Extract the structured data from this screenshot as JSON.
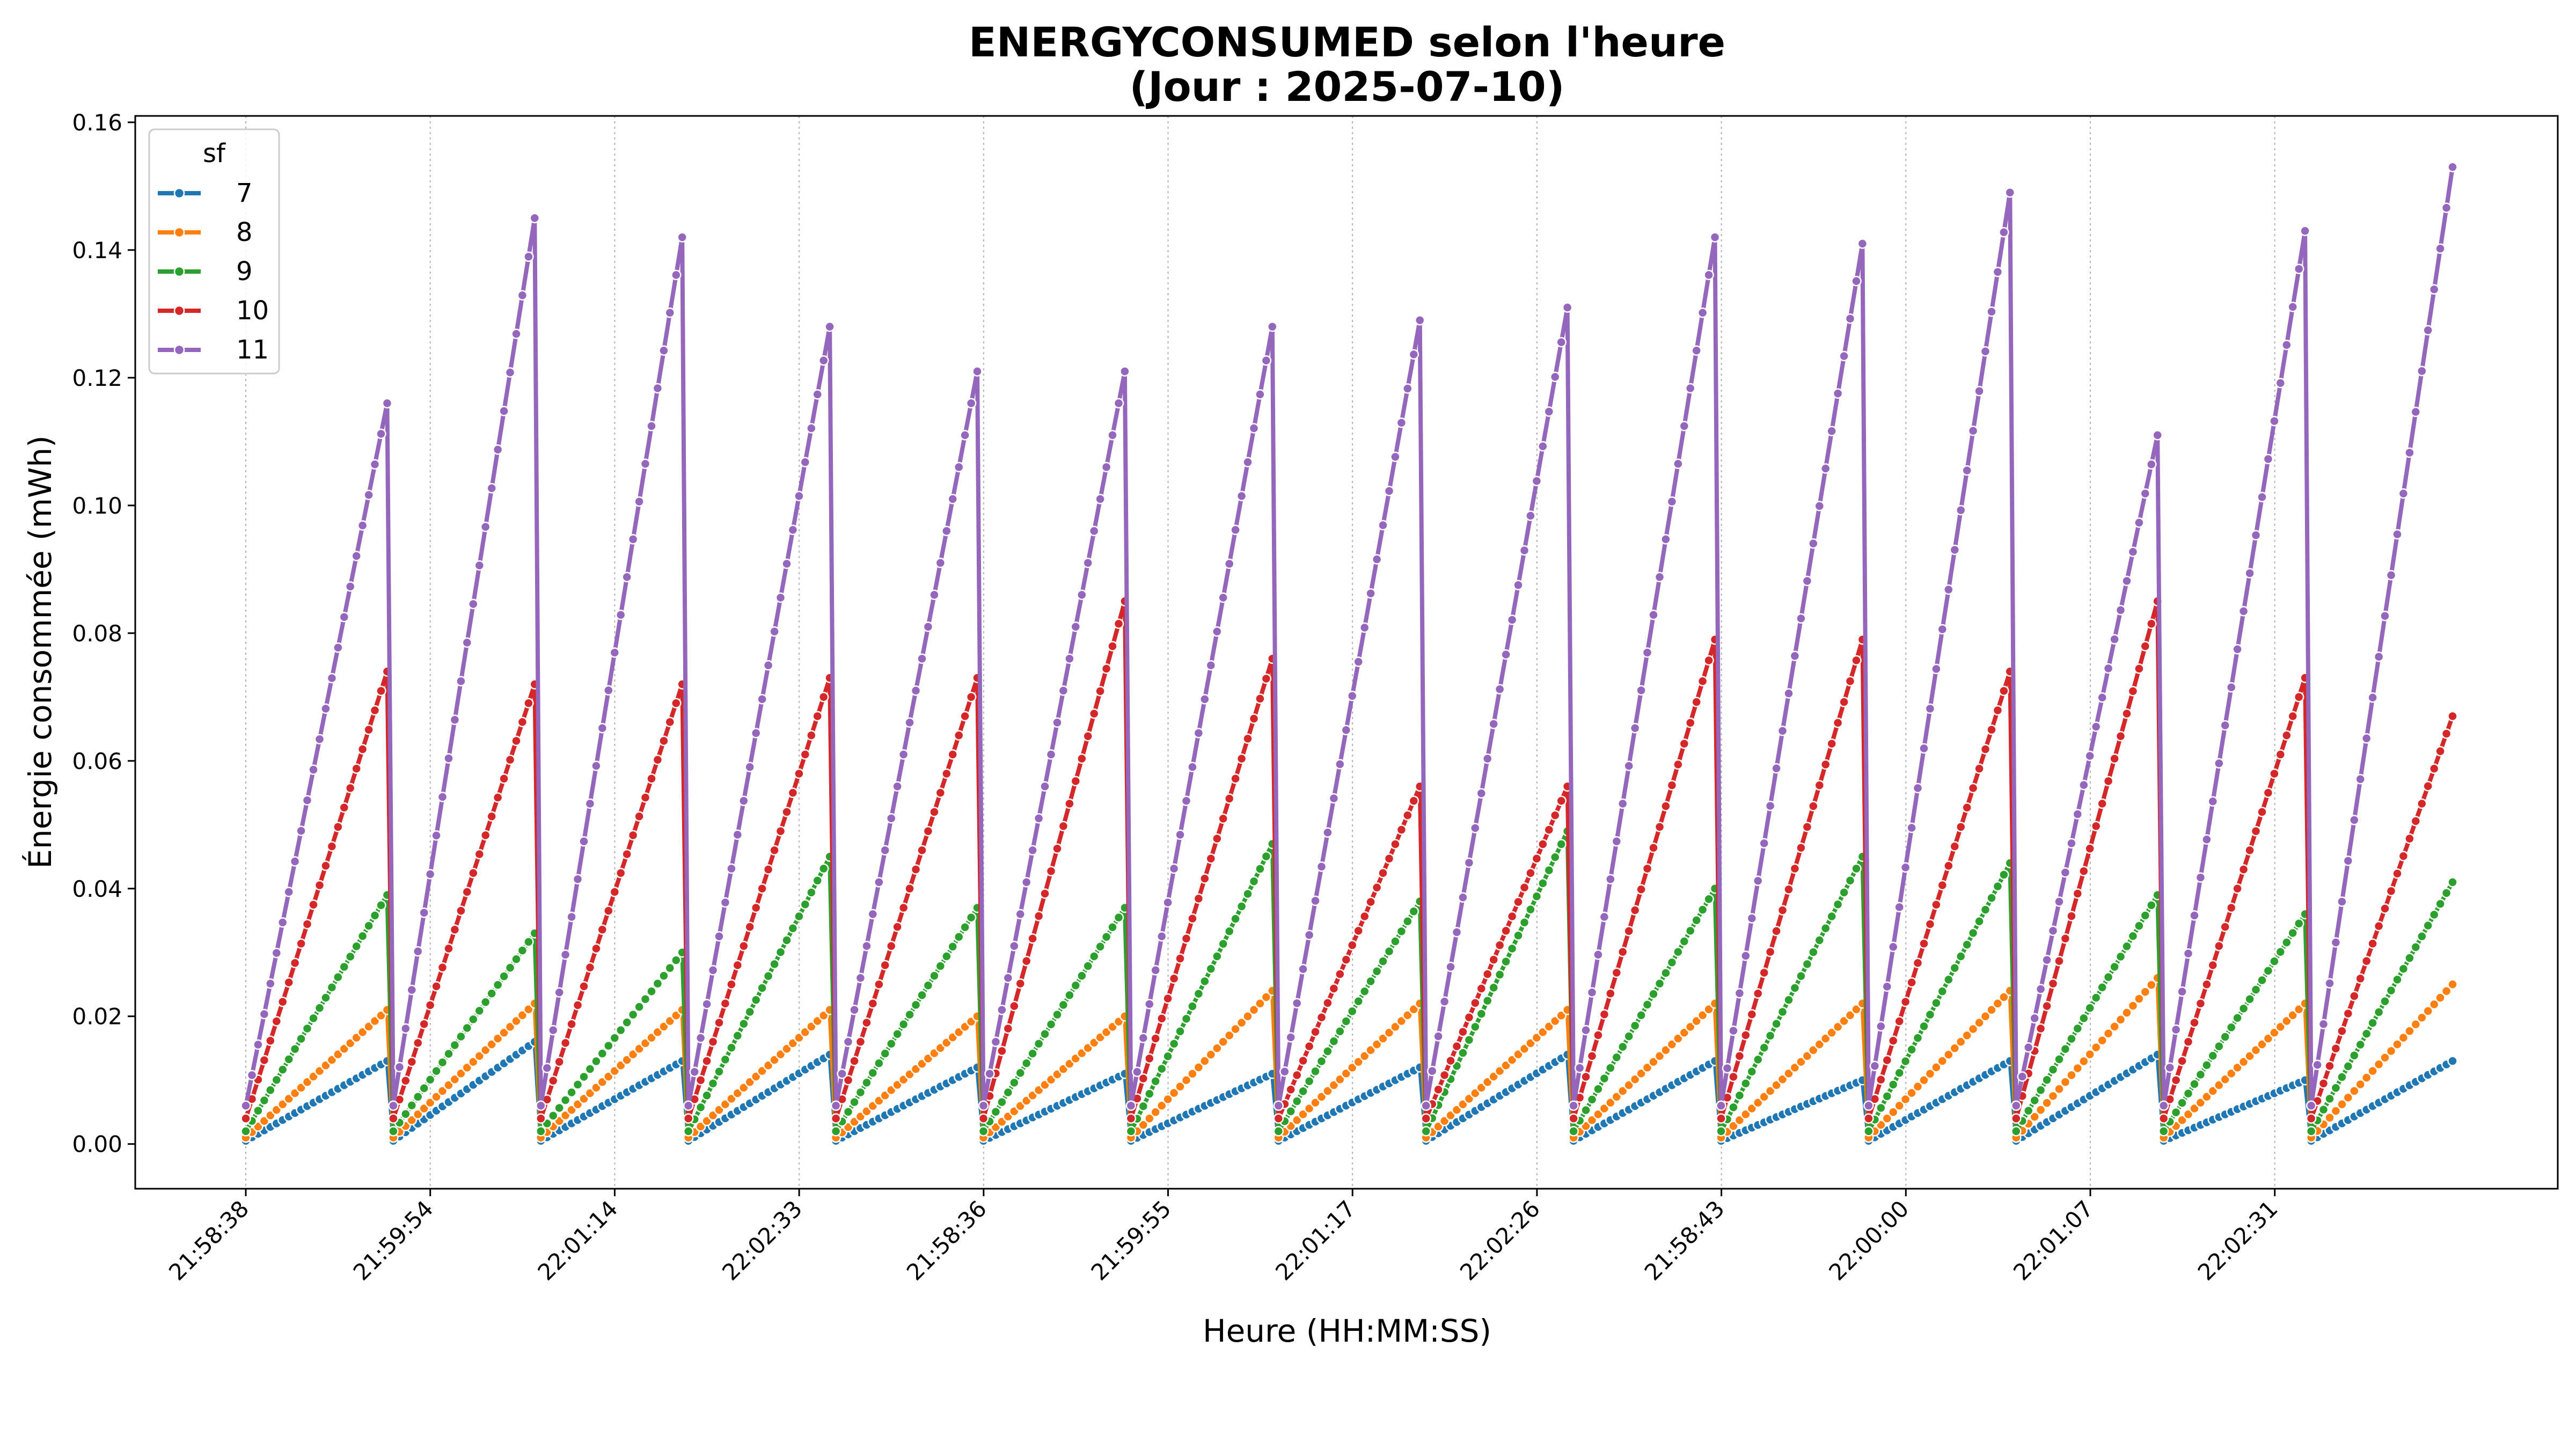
{
  "chart_data": {
    "type": "line",
    "title_line1": "ENERGYCONSUMED selon l'heure",
    "title_line2": "(Jour : 2025-07-10)",
    "xlabel": "Heure (HH:MM:SS)",
    "ylabel": "Énergie consommée (mWh)",
    "ylim": [
      -0.007,
      0.161
    ],
    "yticks": [
      "0.00",
      "0.02",
      "0.04",
      "0.06",
      "0.08",
      "0.10",
      "0.12",
      "0.14",
      "0.16"
    ],
    "ytick_values": [
      0,
      0.02,
      0.04,
      0.06,
      0.08,
      0.1,
      0.12,
      0.14,
      0.16
    ],
    "xticks": [
      "21:58:38",
      "21:59:54",
      "22:01:14",
      "22:02:33",
      "21:58:36",
      "21:59:55",
      "22:01:17",
      "22:02:26",
      "21:58:43",
      "22:00:00",
      "22:01:07",
      "22:02:31"
    ],
    "grid": "vertical dotted",
    "legend_title": "sf",
    "legend_position": "top-left",
    "points_per_cycle": 24,
    "cycles_description": "15 sawtooth cycles; each series ramps linearly from its start value to its peak within each cycle, then drops",
    "series": [
      {
        "name": "7",
        "color": "#1f77b4",
        "start": 0.0005,
        "peaks": [
          0.013,
          0.016,
          0.013,
          0.014,
          0.012,
          0.011,
          0.011,
          0.012,
          0.014,
          0.013,
          0.01,
          0.013,
          0.014,
          0.01,
          0.013
        ]
      },
      {
        "name": "8",
        "color": "#ff7f0e",
        "start": 0.001,
        "peaks": [
          0.021,
          0.022,
          0.021,
          0.021,
          0.02,
          0.02,
          0.024,
          0.022,
          0.021,
          0.022,
          0.022,
          0.024,
          0.026,
          0.022,
          0.025
        ]
      },
      {
        "name": "9",
        "color": "#2ca02c",
        "start": 0.002,
        "peaks": [
          0.039,
          0.033,
          0.03,
          0.045,
          0.037,
          0.037,
          0.047,
          0.038,
          0.049,
          0.04,
          0.045,
          0.044,
          0.039,
          0.036,
          0.041
        ]
      },
      {
        "name": "10",
        "color": "#d62728",
        "start": 0.004,
        "peaks": [
          0.074,
          0.072,
          0.072,
          0.073,
          0.073,
          0.085,
          0.076,
          0.056,
          0.056,
          0.079,
          0.079,
          0.074,
          0.085,
          0.073,
          0.067
        ]
      },
      {
        "name": "11",
        "color": "#9467bd",
        "start": 0.006,
        "peaks": [
          0.116,
          0.145,
          0.142,
          0.128,
          0.121,
          0.121,
          0.128,
          0.129,
          0.131,
          0.142,
          0.141,
          0.149,
          0.111,
          0.143,
          0.153
        ]
      }
    ]
  }
}
